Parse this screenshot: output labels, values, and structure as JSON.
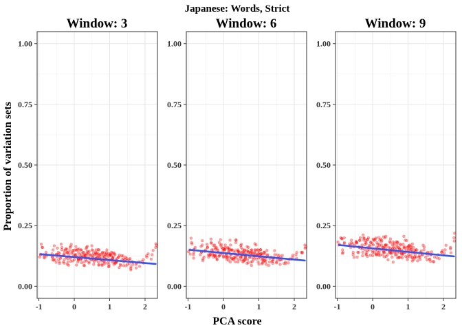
{
  "chart_data": {
    "type": "scatter",
    "title": "Japanese: Words, Strict",
    "xlabel": "PCA score",
    "ylabel": "Proportion of variation sets",
    "xlim": [
      -1.05,
      2.35
    ],
    "ylim": [
      -0.05,
      1.05
    ],
    "x_ticks": [
      -1,
      0,
      1,
      2
    ],
    "y_ticks": [
      0.0,
      0.25,
      0.5,
      0.75,
      1.0
    ],
    "x_tick_labels": [
      "-1",
      "0",
      "1",
      "2"
    ],
    "y_tick_labels": [
      "0.00",
      "0.25",
      "0.50",
      "0.75",
      "1.00"
    ],
    "grid": true,
    "point_color": "#ff0000",
    "fit_color": "#3355ee",
    "panels": [
      {
        "title": "Window: 3",
        "fit": {
          "x": [
            -0.95,
            2.3
          ],
          "y": [
            0.132,
            0.092
          ]
        },
        "point_spread": 0.018,
        "points": [
          [
            -0.95,
            0.13
          ],
          [
            -0.9,
            0.16
          ],
          [
            -0.85,
            0.12
          ],
          [
            -0.8,
            0.14
          ],
          [
            -0.62,
            0.12
          ],
          [
            -0.6,
            0.15
          ],
          [
            -0.55,
            0.11
          ],
          [
            -0.5,
            0.13
          ],
          [
            -0.45,
            0.14
          ],
          [
            -0.42,
            0.1
          ],
          [
            -0.38,
            0.12
          ],
          [
            -0.35,
            0.16
          ],
          [
            -0.3,
            0.13
          ],
          [
            -0.28,
            0.11
          ],
          [
            -0.25,
            0.15
          ],
          [
            -0.22,
            0.12
          ],
          [
            -0.2,
            0.14
          ],
          [
            -0.18,
            0.1
          ],
          [
            -0.15,
            0.13
          ],
          [
            -0.12,
            0.16
          ],
          [
            -0.1,
            0.12
          ],
          [
            -0.05,
            0.14
          ],
          [
            0.0,
            0.11
          ],
          [
            0.02,
            0.13
          ],
          [
            0.05,
            0.15
          ],
          [
            0.08,
            0.12
          ],
          [
            0.1,
            0.1
          ],
          [
            0.12,
            0.14
          ],
          [
            0.15,
            0.13
          ],
          [
            0.18,
            0.11
          ],
          [
            0.2,
            0.15
          ],
          [
            0.22,
            0.12
          ],
          [
            0.25,
            0.14
          ],
          [
            0.28,
            0.1
          ],
          [
            0.3,
            0.13
          ],
          [
            0.32,
            0.11
          ],
          [
            0.35,
            0.16
          ],
          [
            0.38,
            0.12
          ],
          [
            0.4,
            0.14
          ],
          [
            0.42,
            0.1
          ],
          [
            0.45,
            0.13
          ],
          [
            0.48,
            0.11
          ],
          [
            0.5,
            0.15
          ],
          [
            0.52,
            0.12
          ],
          [
            0.55,
            0.09
          ],
          [
            0.58,
            0.13
          ],
          [
            0.6,
            0.14
          ],
          [
            0.62,
            0.11
          ],
          [
            0.65,
            0.12
          ],
          [
            0.68,
            0.1
          ],
          [
            0.7,
            0.15
          ],
          [
            0.72,
            0.13
          ],
          [
            0.75,
            0.11
          ],
          [
            0.78,
            0.09
          ],
          [
            0.8,
            0.14
          ],
          [
            0.82,
            0.12
          ],
          [
            0.85,
            0.1
          ],
          [
            0.88,
            0.13
          ],
          [
            0.9,
            0.11
          ],
          [
            0.92,
            0.15
          ],
          [
            0.95,
            0.12
          ],
          [
            0.98,
            0.09
          ],
          [
            1.0,
            0.13
          ],
          [
            1.02,
            0.11
          ],
          [
            1.05,
            0.14
          ],
          [
            1.08,
            0.1
          ],
          [
            1.1,
            0.12
          ],
          [
            1.12,
            0.09
          ],
          [
            1.15,
            0.13
          ],
          [
            1.18,
            0.11
          ],
          [
            1.2,
            0.1
          ],
          [
            1.25,
            0.12
          ],
          [
            1.3,
            0.09
          ],
          [
            1.35,
            0.11
          ],
          [
            1.4,
            0.1
          ],
          [
            1.45,
            0.12
          ],
          [
            1.5,
            0.09
          ],
          [
            1.55,
            0.11
          ],
          [
            1.6,
            0.08
          ],
          [
            1.65,
            0.1
          ],
          [
            1.75,
            0.09
          ],
          [
            1.85,
            0.1
          ],
          [
            1.95,
            0.11
          ],
          [
            2.05,
            0.12
          ],
          [
            2.2,
            0.13
          ],
          [
            2.3,
            0.16
          ]
        ]
      },
      {
        "title": "Window: 6",
        "fit": {
          "x": [
            -0.95,
            2.3
          ],
          "y": [
            0.15,
            0.106
          ]
        },
        "point_spread": 0.02,
        "points": [
          [
            -0.95,
            0.15
          ],
          [
            -0.9,
            0.18
          ],
          [
            -0.85,
            0.13
          ],
          [
            -0.8,
            0.16
          ],
          [
            -0.62,
            0.14
          ],
          [
            -0.6,
            0.17
          ],
          [
            -0.55,
            0.12
          ],
          [
            -0.5,
            0.15
          ],
          [
            -0.45,
            0.16
          ],
          [
            -0.42,
            0.12
          ],
          [
            -0.38,
            0.14
          ],
          [
            -0.35,
            0.18
          ],
          [
            -0.3,
            0.15
          ],
          [
            -0.28,
            0.12
          ],
          [
            -0.25,
            0.17
          ],
          [
            -0.22,
            0.13
          ],
          [
            -0.2,
            0.16
          ],
          [
            -0.18,
            0.11
          ],
          [
            -0.15,
            0.14
          ],
          [
            -0.12,
            0.18
          ],
          [
            -0.1,
            0.13
          ],
          [
            -0.05,
            0.16
          ],
          [
            0.0,
            0.12
          ],
          [
            0.02,
            0.15
          ],
          [
            0.05,
            0.17
          ],
          [
            0.08,
            0.13
          ],
          [
            0.1,
            0.11
          ],
          [
            0.12,
            0.16
          ],
          [
            0.15,
            0.14
          ],
          [
            0.18,
            0.12
          ],
          [
            0.2,
            0.17
          ],
          [
            0.22,
            0.13
          ],
          [
            0.25,
            0.15
          ],
          [
            0.28,
            0.11
          ],
          [
            0.3,
            0.14
          ],
          [
            0.32,
            0.12
          ],
          [
            0.35,
            0.18
          ],
          [
            0.38,
            0.13
          ],
          [
            0.4,
            0.15
          ],
          [
            0.42,
            0.11
          ],
          [
            0.45,
            0.14
          ],
          [
            0.48,
            0.12
          ],
          [
            0.5,
            0.16
          ],
          [
            0.52,
            0.13
          ],
          [
            0.55,
            0.1
          ],
          [
            0.58,
            0.14
          ],
          [
            0.6,
            0.15
          ],
          [
            0.62,
            0.12
          ],
          [
            0.65,
            0.13
          ],
          [
            0.68,
            0.11
          ],
          [
            0.7,
            0.16
          ],
          [
            0.72,
            0.14
          ],
          [
            0.75,
            0.12
          ],
          [
            0.78,
            0.1
          ],
          [
            0.8,
            0.15
          ],
          [
            0.82,
            0.13
          ],
          [
            0.85,
            0.11
          ],
          [
            0.88,
            0.14
          ],
          [
            0.9,
            0.12
          ],
          [
            0.92,
            0.17
          ],
          [
            0.95,
            0.13
          ],
          [
            0.98,
            0.1
          ],
          [
            1.0,
            0.14
          ],
          [
            1.02,
            0.12
          ],
          [
            1.05,
            0.15
          ],
          [
            1.08,
            0.11
          ],
          [
            1.1,
            0.13
          ],
          [
            1.12,
            0.1
          ],
          [
            1.15,
            0.14
          ],
          [
            1.18,
            0.12
          ],
          [
            1.2,
            0.11
          ],
          [
            1.25,
            0.13
          ],
          [
            1.3,
            0.1
          ],
          [
            1.35,
            0.12
          ],
          [
            1.4,
            0.11
          ],
          [
            1.45,
            0.13
          ],
          [
            1.5,
            0.1
          ],
          [
            1.55,
            0.12
          ],
          [
            1.6,
            0.09
          ],
          [
            1.65,
            0.11
          ],
          [
            1.75,
            0.1
          ],
          [
            1.85,
            0.11
          ],
          [
            1.95,
            0.12
          ],
          [
            2.05,
            0.13
          ],
          [
            2.2,
            0.14
          ],
          [
            2.3,
            0.17
          ]
        ]
      },
      {
        "title": "Window: 9",
        "fit": {
          "x": [
            -0.95,
            2.3
          ],
          "y": [
            0.17,
            0.123
          ]
        },
        "point_spread": 0.022,
        "points": [
          [
            -0.95,
            0.17
          ],
          [
            -0.9,
            0.2
          ],
          [
            -0.85,
            0.15
          ],
          [
            -0.8,
            0.18
          ],
          [
            -0.62,
            0.16
          ],
          [
            -0.6,
            0.19
          ],
          [
            -0.55,
            0.14
          ],
          [
            -0.5,
            0.17
          ],
          [
            -0.45,
            0.18
          ],
          [
            -0.42,
            0.14
          ],
          [
            -0.38,
            0.16
          ],
          [
            -0.35,
            0.2
          ],
          [
            -0.3,
            0.17
          ],
          [
            -0.28,
            0.14
          ],
          [
            -0.25,
            0.19
          ],
          [
            -0.22,
            0.15
          ],
          [
            -0.2,
            0.18
          ],
          [
            -0.18,
            0.13
          ],
          [
            -0.15,
            0.16
          ],
          [
            -0.12,
            0.2
          ],
          [
            -0.1,
            0.15
          ],
          [
            -0.05,
            0.18
          ],
          [
            0.0,
            0.14
          ],
          [
            0.02,
            0.17
          ],
          [
            0.05,
            0.19
          ],
          [
            0.08,
            0.15
          ],
          [
            0.1,
            0.13
          ],
          [
            0.12,
            0.18
          ],
          [
            0.15,
            0.16
          ],
          [
            0.18,
            0.14
          ],
          [
            0.2,
            0.19
          ],
          [
            0.22,
            0.15
          ],
          [
            0.25,
            0.17
          ],
          [
            0.28,
            0.13
          ],
          [
            0.3,
            0.16
          ],
          [
            0.32,
            0.14
          ],
          [
            0.35,
            0.2
          ],
          [
            0.38,
            0.15
          ],
          [
            0.4,
            0.17
          ],
          [
            0.42,
            0.13
          ],
          [
            0.45,
            0.16
          ],
          [
            0.48,
            0.14
          ],
          [
            0.5,
            0.18
          ],
          [
            0.52,
            0.15
          ],
          [
            0.55,
            0.12
          ],
          [
            0.58,
            0.16
          ],
          [
            0.6,
            0.17
          ],
          [
            0.62,
            0.14
          ],
          [
            0.65,
            0.15
          ],
          [
            0.68,
            0.13
          ],
          [
            0.7,
            0.18
          ],
          [
            0.72,
            0.16
          ],
          [
            0.75,
            0.14
          ],
          [
            0.78,
            0.12
          ],
          [
            0.8,
            0.17
          ],
          [
            0.82,
            0.15
          ],
          [
            0.85,
            0.13
          ],
          [
            0.88,
            0.16
          ],
          [
            0.9,
            0.14
          ],
          [
            0.92,
            0.19
          ],
          [
            0.95,
            0.15
          ],
          [
            0.98,
            0.12
          ],
          [
            1.0,
            0.16
          ],
          [
            1.02,
            0.14
          ],
          [
            1.05,
            0.17
          ],
          [
            1.08,
            0.13
          ],
          [
            1.1,
            0.15
          ],
          [
            1.12,
            0.12
          ],
          [
            1.15,
            0.16
          ],
          [
            1.18,
            0.14
          ],
          [
            1.2,
            0.13
          ],
          [
            1.25,
            0.15
          ],
          [
            1.3,
            0.12
          ],
          [
            1.35,
            0.14
          ],
          [
            1.4,
            0.13
          ],
          [
            1.45,
            0.15
          ],
          [
            1.5,
            0.12
          ],
          [
            1.55,
            0.14
          ],
          [
            1.6,
            0.11
          ],
          [
            1.65,
            0.13
          ],
          [
            1.75,
            0.12
          ],
          [
            1.85,
            0.13
          ],
          [
            1.95,
            0.14
          ],
          [
            2.05,
            0.15
          ],
          [
            2.2,
            0.16
          ],
          [
            2.3,
            0.2
          ]
        ]
      }
    ]
  }
}
